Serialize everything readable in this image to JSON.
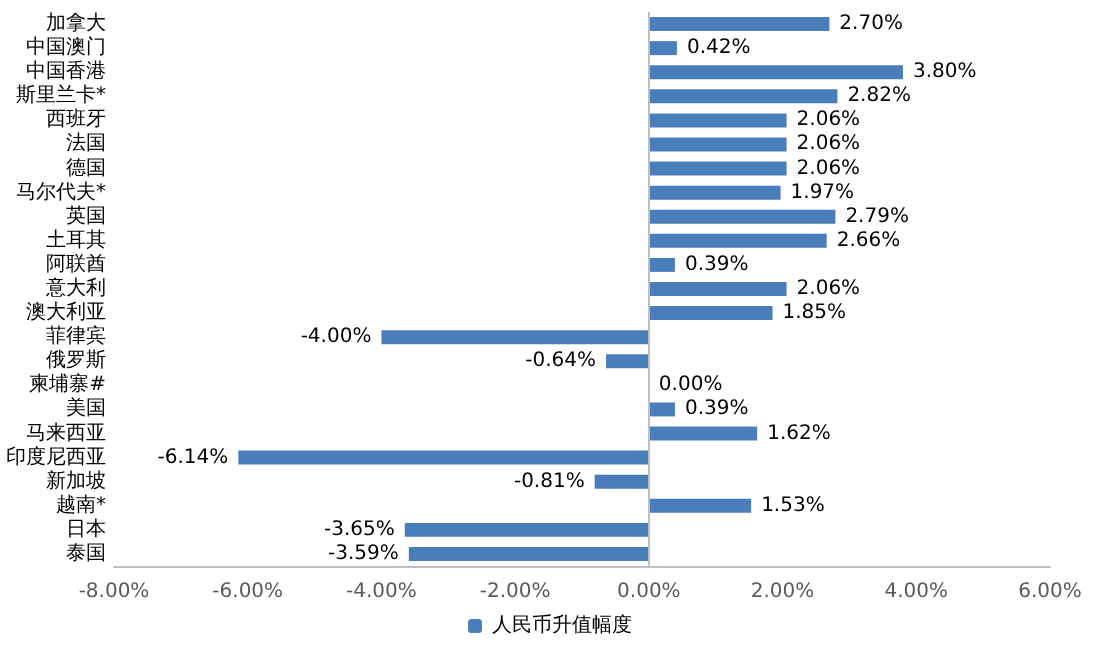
{
  "chart_data": {
    "type": "bar",
    "orientation": "horizontal",
    "categories": [
      "加拿大",
      "中国澳门",
      "中国香港",
      "斯里兰卡*",
      "西班牙",
      "法国",
      "德国",
      "马尔代夫*",
      "英国",
      "土耳其",
      "阿联酋",
      "意大利",
      "澳大利亚",
      "菲律宾",
      "俄罗斯",
      "柬埔寨#",
      "美国",
      "马来西亚",
      "印度尼西亚",
      "新加坡",
      "越南*",
      "日本",
      "泰国"
    ],
    "series": [
      {
        "name": "人民币升值幅度",
        "color": "#4a7ebb",
        "values": [
          2.7,
          0.42,
          3.8,
          2.82,
          2.06,
          2.06,
          2.06,
          1.97,
          2.79,
          2.66,
          0.39,
          2.06,
          1.85,
          -4.0,
          -0.64,
          0.0,
          0.39,
          1.62,
          -6.14,
          -0.81,
          1.53,
          -3.65,
          -3.59
        ],
        "value_labels": [
          "2.70%",
          "0.42%",
          "3.80%",
          "2.82%",
          "2.06%",
          "2.06%",
          "2.06%",
          "1.97%",
          "2.79%",
          "2.66%",
          "0.39%",
          "2.06%",
          "1.85%",
          "-4.00%",
          "-0.64%",
          "0.00%",
          "0.39%",
          "1.62%",
          "-6.14%",
          "-0.81%",
          "1.53%",
          "-3.65%",
          "-3.59%"
        ]
      }
    ],
    "xlim": [
      -8,
      6
    ],
    "xticks": [
      {
        "value": -8,
        "label": "-8.00%"
      },
      {
        "value": -6,
        "label": "-6.00%"
      },
      {
        "value": -4,
        "label": "-4.00%"
      },
      {
        "value": -2,
        "label": "-2.00%"
      },
      {
        "value": 0,
        "label": "0.00%"
      },
      {
        "value": 2,
        "label": "2.00%"
      },
      {
        "value": 4,
        "label": "4.00%"
      },
      {
        "value": 6,
        "label": "6.00%"
      }
    ],
    "ref_lines": [
      {
        "axis": "x",
        "value": 0
      }
    ],
    "legend": "bottom",
    "grid": false
  }
}
